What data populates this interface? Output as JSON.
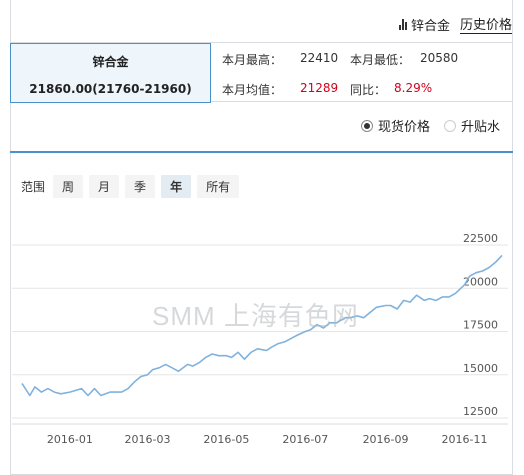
{
  "header": {
    "metal_link": "锌合金",
    "history_link": "历史价格"
  },
  "summary": {
    "metal_name": "锌合金",
    "price": "21860.00(21760-21960)",
    "month_high_label": "本月最高：",
    "month_high": "22410",
    "month_low_label": "本月最低：",
    "month_low": "20580",
    "month_avg_label": "本月均值：",
    "month_avg": "21289",
    "yoy_label": "同比：",
    "yoy": "8.29%"
  },
  "price_type": {
    "options": [
      "现货价格",
      "升贴水"
    ],
    "selected": "现货价格"
  },
  "range": {
    "label": "范围",
    "options": [
      "周",
      "月",
      "季",
      "年",
      "所有"
    ],
    "selected": "年"
  },
  "watermark": "SMM 上海有色网",
  "colors": {
    "line": "#7fb2de",
    "accent": "#4a90c9",
    "red": "#d0021b"
  },
  "chart_data": {
    "type": "line",
    "x_tick_labels": [
      "2016-01",
      "2016-03",
      "2016-05",
      "2016-07",
      "2016-09",
      "2016-11"
    ],
    "y_tick_labels": [
      "12500",
      "15000",
      "17500",
      "20000",
      "22500"
    ],
    "ylim": [
      12500,
      22500
    ],
    "xlim": [
      "2015-11-25",
      "2016-11-30"
    ],
    "grid": "horizontal",
    "series": [
      {
        "x": [
          "2015-11-25",
          "2015-12-01",
          "2015-12-05",
          "2015-12-10",
          "2015-12-15",
          "2015-12-20",
          "2015-12-25",
          "2016-01-01",
          "2016-01-10",
          "2016-01-15",
          "2016-01-20",
          "2016-01-25",
          "2016-02-01",
          "2016-02-10",
          "2016-02-15",
          "2016-02-20",
          "2016-02-25",
          "2016-03-01",
          "2016-03-05",
          "2016-03-10",
          "2016-03-15",
          "2016-03-20",
          "2016-03-25",
          "2016-04-01",
          "2016-04-05",
          "2016-04-10",
          "2016-04-15",
          "2016-04-20",
          "2016-04-25",
          "2016-05-01",
          "2016-05-05",
          "2016-05-10",
          "2016-05-15",
          "2016-05-20",
          "2016-05-25",
          "2016-06-01",
          "2016-06-05",
          "2016-06-10",
          "2016-06-15",
          "2016-06-20",
          "2016-06-25",
          "2016-07-01",
          "2016-07-05",
          "2016-07-10",
          "2016-07-15",
          "2016-07-20",
          "2016-07-25",
          "2016-08-01",
          "2016-08-05",
          "2016-08-10",
          "2016-08-15",
          "2016-08-20",
          "2016-08-25",
          "2016-09-01",
          "2016-09-05",
          "2016-09-10",
          "2016-09-15",
          "2016-09-20",
          "2016-09-25",
          "2016-10-01",
          "2016-10-05",
          "2016-10-10",
          "2016-10-15",
          "2016-10-20",
          "2016-10-25",
          "2016-11-01",
          "2016-11-05",
          "2016-11-10",
          "2016-11-15",
          "2016-11-20",
          "2016-11-25",
          "2016-11-30"
        ],
        "y": [
          14500,
          13800,
          14300,
          14000,
          14200,
          14000,
          13900,
          14000,
          14200,
          13800,
          14200,
          13800,
          14000,
          14000,
          14200,
          14600,
          14900,
          15000,
          15300,
          15400,
          15600,
          15400,
          15200,
          15600,
          15500,
          15700,
          16000,
          16200,
          16100,
          16100,
          16000,
          16300,
          15900,
          16300,
          16500,
          16400,
          16600,
          16800,
          16900,
          17100,
          17300,
          17500,
          17600,
          17900,
          17700,
          18000,
          18000,
          18300,
          18300,
          18400,
          18300,
          18600,
          18900,
          19000,
          19000,
          18800,
          19300,
          19200,
          19600,
          19300,
          19400,
          19300,
          19500,
          19500,
          19700,
          20200,
          20700,
          20900,
          21000,
          21200,
          21500,
          21900
        ]
      }
    ]
  }
}
